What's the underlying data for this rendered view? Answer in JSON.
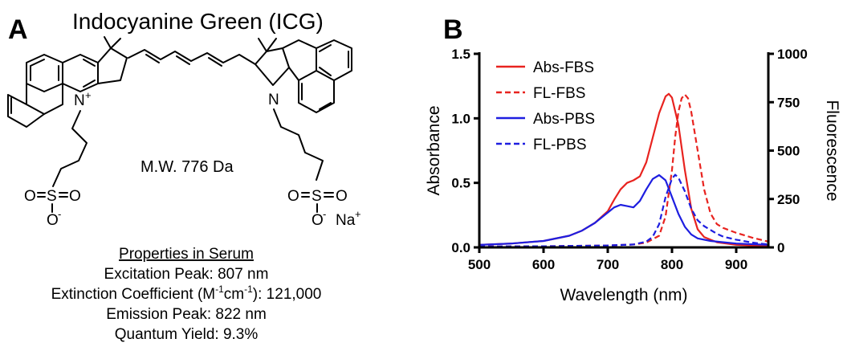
{
  "panel_a": {
    "letter": "A",
    "title": "Indocyanine Green (ICG)",
    "atoms": {
      "n_left": "N",
      "n_left_charge": "+",
      "n_right": "N",
      "s_left": "S",
      "s_right": "S",
      "o": "O",
      "o_minus": "-",
      "na": "Na",
      "na_charge": "+"
    },
    "mw": "M.W. 776 Da",
    "properties": {
      "heading": "Properties in Serum",
      "excitation": "Excitation Peak: 807 nm",
      "extinction_prefix": "Extinction Coefficient (M",
      "extinction_exp1": "-1",
      "extinction_mid": "cm",
      "extinction_exp2": "-1",
      "extinction_suffix": "): 121,000",
      "emission": "Emission Peak: 822 nm",
      "quantum_yield": "Quantum Yield: 9.3%"
    }
  },
  "chart_data": {
    "panel_letter": "B",
    "type": "line",
    "xlabel": "Wavelength (nm)",
    "ylabel": "Absorbance",
    "y2label": "Fluorescence",
    "xlim": [
      500,
      950
    ],
    "ylim": [
      0,
      1.5
    ],
    "y2lim": [
      0,
      1000
    ],
    "x_ticks": [
      "500",
      "600",
      "700",
      "800",
      "900"
    ],
    "y_ticks": [
      "0.0",
      "0.5",
      "1.0",
      "1.5"
    ],
    "y2_ticks": [
      "0",
      "250",
      "500",
      "750",
      "1000"
    ],
    "legend_position": "top-left",
    "colors": {
      "red": "#e8231f",
      "blue": "#1e1ee0"
    },
    "series": [
      {
        "name": "Abs-FBS",
        "axis": "left",
        "color": "#e8231f",
        "dash": false,
        "x": [
          500,
          550,
          600,
          640,
          660,
          680,
          700,
          710,
          720,
          730,
          740,
          750,
          760,
          770,
          780,
          790,
          795,
          800,
          810,
          820,
          830,
          840,
          850,
          870,
          900,
          950
        ],
        "y": [
          0.02,
          0.03,
          0.05,
          0.09,
          0.13,
          0.19,
          0.28,
          0.37,
          0.45,
          0.5,
          0.52,
          0.55,
          0.66,
          0.85,
          1.04,
          1.17,
          1.19,
          1.16,
          0.95,
          0.6,
          0.3,
          0.14,
          0.08,
          0.04,
          0.02,
          0.01
        ]
      },
      {
        "name": "FL-FBS",
        "axis": "right",
        "color": "#e8231f",
        "dash": true,
        "x": [
          500,
          600,
          700,
          740,
          760,
          780,
          790,
          800,
          805,
          810,
          815,
          820,
          825,
          830,
          840,
          850,
          860,
          870,
          880,
          900,
          925,
          950
        ],
        "y": [
          5,
          6,
          10,
          15,
          25,
          60,
          160,
          400,
          570,
          700,
          770,
          790,
          770,
          700,
          500,
          300,
          175,
          120,
          100,
          75,
          50,
          30
        ]
      },
      {
        "name": "Abs-PBS",
        "axis": "left",
        "color": "#1e1ee0",
        "dash": false,
        "x": [
          500,
          550,
          600,
          640,
          660,
          680,
          700,
          710,
          720,
          730,
          740,
          750,
          760,
          770,
          780,
          790,
          800,
          810,
          820,
          830,
          840,
          860,
          880,
          900,
          950
        ],
        "y": [
          0.02,
          0.03,
          0.05,
          0.09,
          0.13,
          0.19,
          0.27,
          0.31,
          0.33,
          0.32,
          0.31,
          0.36,
          0.45,
          0.53,
          0.56,
          0.52,
          0.39,
          0.26,
          0.16,
          0.1,
          0.07,
          0.05,
          0.04,
          0.03,
          0.02
        ]
      },
      {
        "name": "FL-PBS",
        "axis": "right",
        "color": "#1e1ee0",
        "dash": true,
        "x": [
          500,
          600,
          700,
          740,
          760,
          770,
          780,
          790,
          800,
          805,
          810,
          820,
          830,
          840,
          850,
          860,
          870,
          880,
          900,
          925,
          950
        ],
        "y": [
          5,
          6,
          10,
          15,
          30,
          55,
          120,
          260,
          355,
          375,
          360,
          290,
          200,
          140,
          110,
          90,
          70,
          55,
          40,
          25,
          15
        ]
      }
    ]
  }
}
